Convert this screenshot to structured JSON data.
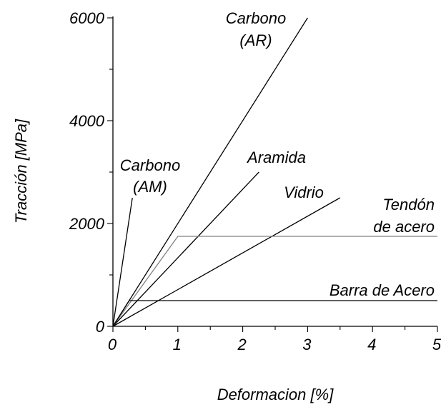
{
  "chart_data": {
    "type": "line",
    "xlabel": "Deformacion [%]",
    "ylabel": "Tracción [MPa]",
    "xlim": [
      0,
      5
    ],
    "ylim": [
      0,
      6000
    ],
    "x_ticks": [
      "0",
      "1",
      "2",
      "3",
      "4",
      "5"
    ],
    "y_ticks": [
      "0",
      "2000",
      "4000",
      "6000"
    ],
    "grid": false,
    "series": [
      {
        "name": "Carbono (AM)",
        "label_lines": [
          "Carbono",
          "(AM)"
        ],
        "color": "#000000",
        "x": [
          0,
          0.3
        ],
        "y": [
          0,
          2500
        ]
      },
      {
        "name": "Carbono (AR)",
        "label_lines": [
          "Carbono",
          "(AR)"
        ],
        "color": "#000000",
        "x": [
          0,
          3.0
        ],
        "y": [
          0,
          6000
        ]
      },
      {
        "name": "Aramida",
        "label_lines": [
          "Aramida"
        ],
        "color": "#000000",
        "x": [
          0,
          2.25
        ],
        "y": [
          0,
          3000
        ]
      },
      {
        "name": "Vidrio",
        "label_lines": [
          "Vidrio"
        ],
        "color": "#000000",
        "x": [
          0,
          3.5
        ],
        "y": [
          0,
          2500
        ]
      },
      {
        "name": "Tendón de acero",
        "label_lines": [
          "Tendón",
          "de acero"
        ],
        "color": "#808080",
        "x": [
          0,
          1.0,
          5.0
        ],
        "y": [
          0,
          1750,
          1750
        ]
      },
      {
        "name": "Barra de Acero",
        "label_lines": [
          "Barra de Acero"
        ],
        "color": "#000000",
        "x": [
          0,
          0.25,
          5.0
        ],
        "y": [
          0,
          500,
          500
        ]
      }
    ]
  }
}
